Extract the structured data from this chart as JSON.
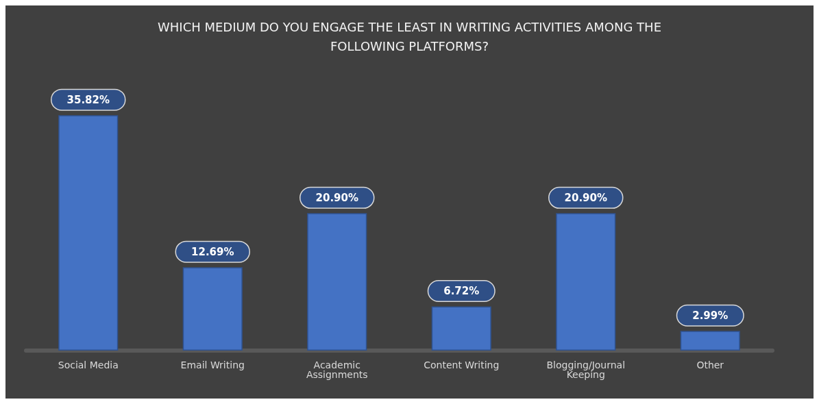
{
  "chart_data": {
    "type": "bar",
    "title": "WHICH MEDIUM DO YOU ENGAGE THE LEAST IN WRITING ACTIVITIES AMONG THE\nFOLLOWING PLATFORMS?",
    "categories": [
      "Social Media",
      "Email Writing",
      "Academic\nAssignments",
      "Content Writing",
      "Blogging/Journal\nKeeping",
      "Other"
    ],
    "values": [
      35.82,
      12.69,
      20.9,
      6.72,
      20.9,
      2.99
    ],
    "value_labels": [
      "35.82%",
      "12.69%",
      "20.90%",
      "6.72%",
      "20.90%",
      "2.99%"
    ],
    "color": "#4472c4"
  }
}
